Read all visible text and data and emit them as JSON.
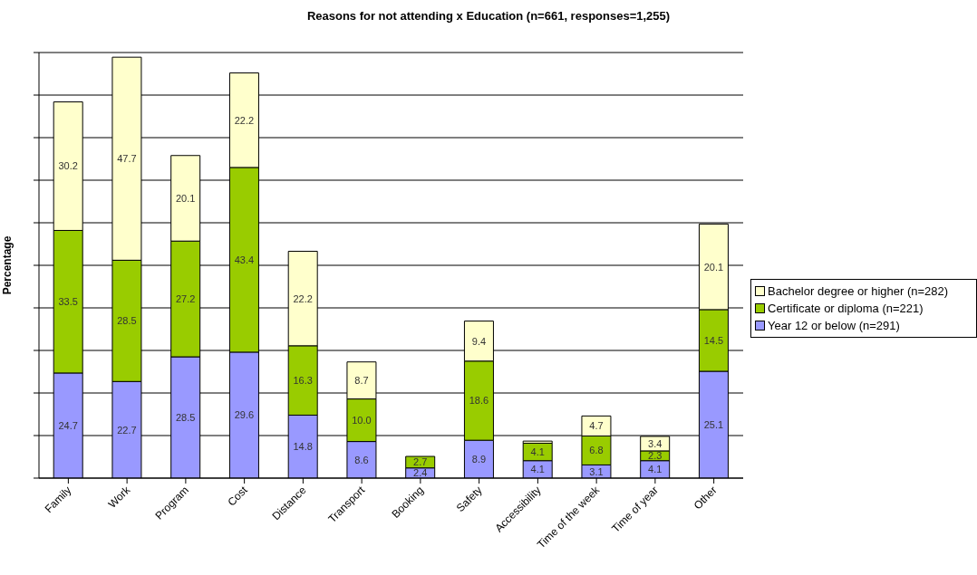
{
  "chart_data": {
    "type": "bar",
    "title": "Reasons for not attending x Education (n=661, responses=1,255)",
    "ylabel": "Percentage",
    "stacked": true,
    "categories": [
      "Family",
      "Work",
      "Program",
      "Cost",
      "Distance",
      "Transport",
      "Booking",
      "Safety",
      "Accessibility",
      "Time of the week",
      "Time of year",
      "Other"
    ],
    "series": [
      {
        "name": "Year 12 or below (n=291)",
        "color": "#9999ff",
        "values": [
          24.7,
          22.7,
          28.5,
          29.6,
          14.8,
          8.6,
          2.4,
          8.9,
          4.1,
          3.1,
          4.1,
          25.1
        ],
        "value_labels": [
          "24.7",
          "22.7",
          "28.5",
          "29.6",
          "14.8",
          "8.6",
          "2.4",
          "8.9",
          "4.1",
          "3.1",
          "4.1",
          "25.1"
        ]
      },
      {
        "name": "Certificate or diploma (n=221)",
        "color": "#99cc00",
        "values": [
          33.5,
          28.5,
          27.2,
          43.4,
          16.3,
          10.0,
          2.7,
          18.6,
          4.1,
          6.8,
          2.3,
          14.5
        ],
        "value_labels": [
          "33.5",
          "28.5",
          "27.2",
          "43.4",
          "16.3",
          "10.0",
          "2.7",
          "18.6",
          "4.1",
          "6.8",
          "2.3",
          "14.5"
        ]
      },
      {
        "name": "Bachelor degree or higher (n=282)",
        "color": "#ffffcc",
        "values": [
          30.2,
          47.7,
          20.1,
          22.2,
          22.2,
          8.7,
          null,
          9.4,
          0.5,
          4.7,
          3.4,
          20.1
        ],
        "value_labels": [
          "30.2",
          "47.7",
          "20.1",
          "22.2",
          "22.2",
          "8.7",
          null,
          "9.4",
          null,
          "4.7",
          "3.4",
          "20.1"
        ]
      }
    ],
    "ylim": [
      0,
      100
    ],
    "yticks": [
      {
        "value": 0,
        "label": null
      },
      {
        "value": 10,
        "label": null
      },
      {
        "value": 20,
        "label": null
      },
      {
        "value": 30,
        "label": null
      },
      {
        "value": 40,
        "label": null
      },
      {
        "value": 50,
        "label": null
      },
      {
        "value": 60,
        "label": null
      },
      {
        "value": 70,
        "label": null
      },
      {
        "value": 80,
        "label": null
      },
      {
        "value": 90,
        "label": null
      },
      {
        "value": 100,
        "label": null
      }
    ],
    "tick_labels": "x",
    "grid": "y",
    "legend": "right"
  }
}
